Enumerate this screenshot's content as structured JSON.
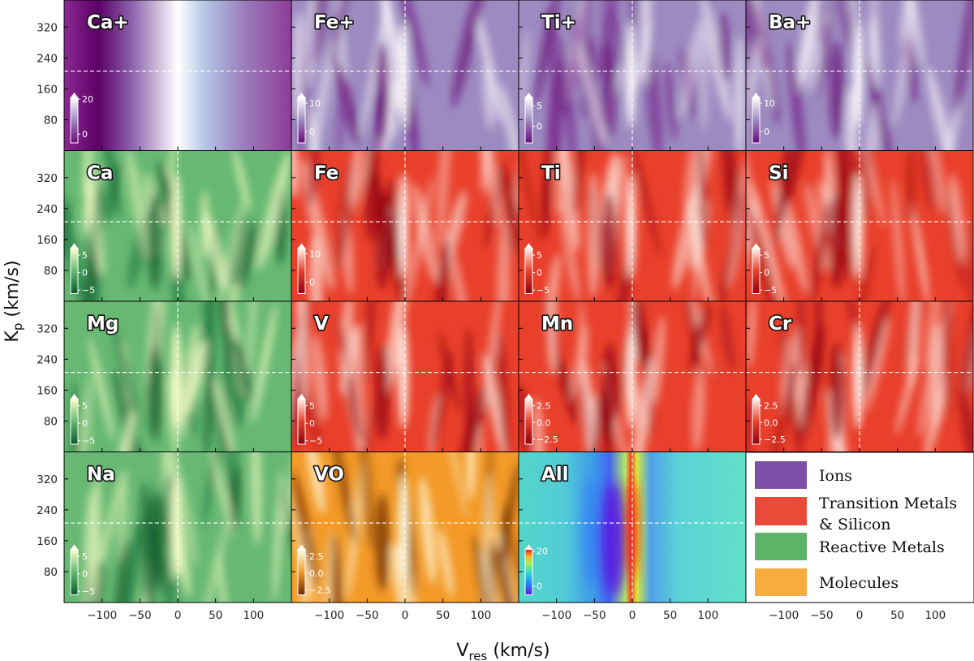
{
  "chart_data": {
    "type": "heatmap",
    "x_axis": {
      "label_main": "V",
      "label_sub": "res",
      "label_unit": " (km/s)",
      "ticks": [
        -100,
        -50,
        0,
        50,
        100
      ],
      "tick_labels": [
        "−100",
        "−50",
        "0",
        "50",
        "100"
      ],
      "range": [
        -150,
        150
      ]
    },
    "y_axis": {
      "label_main": "K",
      "label_sub": "p",
      "label_unit": " (km/s)",
      "ticks": [
        80,
        160,
        240,
        320
      ],
      "tick_labels": [
        "80",
        "160",
        "240",
        "320"
      ],
      "range": [
        0,
        390
      ]
    },
    "guide_lines": {
      "v": 0,
      "kp": 206
    },
    "panels": [
      {
        "title": "Ca+",
        "group": "ions",
        "cbar_ticks": [
          {
            "v": 20,
            "label": "20"
          },
          {
            "v": 0,
            "label": "0"
          }
        ],
        "cbar_range": [
          -5,
          21
        ]
      },
      {
        "title": "Fe+",
        "group": "ions",
        "cbar_ticks": [
          {
            "v": 10,
            "label": "10"
          },
          {
            "v": 0,
            "label": "0"
          }
        ],
        "cbar_range": [
          -4,
          12
        ]
      },
      {
        "title": "Ti+",
        "group": "ions",
        "cbar_ticks": [
          {
            "v": 5,
            "label": "5"
          },
          {
            "v": 0,
            "label": "0"
          }
        ],
        "cbar_range": [
          -4,
          7
        ]
      },
      {
        "title": "Ba+",
        "group": "ions",
        "cbar_ticks": [
          {
            "v": 10,
            "label": "10"
          },
          {
            "v": 0,
            "label": "0"
          }
        ],
        "cbar_range": [
          -4,
          12
        ]
      },
      {
        "title": "Ca",
        "group": "reactive",
        "cbar_ticks": [
          {
            "v": 5,
            "label": "5"
          },
          {
            "v": 0,
            "label": "0"
          },
          {
            "v": -5,
            "label": "−5"
          }
        ],
        "cbar_range": [
          -6,
          7
        ]
      },
      {
        "title": "Fe",
        "group": "transition",
        "cbar_ticks": [
          {
            "v": 10,
            "label": "10"
          },
          {
            "v": 0,
            "label": "0"
          }
        ],
        "cbar_range": [
          -4,
          12
        ]
      },
      {
        "title": "Ti",
        "group": "transition",
        "cbar_ticks": [
          {
            "v": 5,
            "label": "5"
          },
          {
            "v": 0,
            "label": "0"
          },
          {
            "v": -5,
            "label": "−5"
          }
        ],
        "cbar_range": [
          -6,
          7
        ]
      },
      {
        "title": "Si",
        "group": "transition",
        "cbar_ticks": [
          {
            "v": 5,
            "label": "5"
          },
          {
            "v": 0,
            "label": "0"
          },
          {
            "v": -5,
            "label": "−5"
          }
        ],
        "cbar_range": [
          -6,
          7
        ]
      },
      {
        "title": "Mg",
        "group": "reactive",
        "cbar_ticks": [
          {
            "v": 5,
            "label": "5"
          },
          {
            "v": 0,
            "label": "0"
          },
          {
            "v": -5,
            "label": "−5"
          }
        ],
        "cbar_range": [
          -6,
          7
        ]
      },
      {
        "title": "V",
        "group": "transition",
        "cbar_ticks": [
          {
            "v": 5,
            "label": "5"
          },
          {
            "v": 0,
            "label": "0"
          },
          {
            "v": -5,
            "label": "−5"
          }
        ],
        "cbar_range": [
          -6,
          7
        ]
      },
      {
        "title": "Mn",
        "group": "transition",
        "cbar_ticks": [
          {
            "v": 2.5,
            "label": "2.5"
          },
          {
            "v": 0,
            "label": "0.0"
          },
          {
            "v": -2.5,
            "label": "−2.5"
          }
        ],
        "cbar_range": [
          -3.2,
          3.5
        ]
      },
      {
        "title": "Cr",
        "group": "transition",
        "cbar_ticks": [
          {
            "v": 2.5,
            "label": "2.5"
          },
          {
            "v": 0,
            "label": "0.0"
          },
          {
            "v": -2.5,
            "label": "−2.5"
          }
        ],
        "cbar_range": [
          -3.2,
          3.5
        ]
      },
      {
        "title": "Na",
        "group": "reactive",
        "cbar_ticks": [
          {
            "v": 5,
            "label": "5"
          },
          {
            "v": 0,
            "label": "0"
          },
          {
            "v": -5,
            "label": "−5"
          }
        ],
        "cbar_range": [
          -6,
          7
        ]
      },
      {
        "title": "VO",
        "group": "molecules",
        "cbar_ticks": [
          {
            "v": 2.5,
            "label": "2.5"
          },
          {
            "v": 0,
            "label": "0.0"
          },
          {
            "v": -2.5,
            "label": "−2.5"
          }
        ],
        "cbar_range": [
          -3.2,
          3.5
        ]
      },
      {
        "title": "All",
        "group": "all",
        "cbar_ticks": [
          {
            "v": 20,
            "label": "20"
          },
          {
            "v": 0,
            "label": "0"
          }
        ],
        "cbar_range": [
          -5,
          21
        ]
      }
    ],
    "legend": [
      {
        "label_lines": [
          "Ions"
        ],
        "color": "#7e4fa6"
      },
      {
        "label_lines": [
          "Transition Metals",
          "& Silicon"
        ],
        "color": "#eb4a39"
      },
      {
        "label_lines": [
          "Reactive Metals"
        ],
        "color": "#5db468"
      },
      {
        "label_lines": [
          "Molecules"
        ],
        "color": "#f6ad3e"
      }
    ]
  },
  "colors": {
    "ions_low": "#6a0a78",
    "ions_mid": "#9c8ac0",
    "ions_high": "#ffffff",
    "reactive_low": "#0b5a2a",
    "reactive_mid": "#66b872",
    "reactive_high": "#ffffcc",
    "transition_low": "#8f0010",
    "transition_mid": "#e9402c",
    "transition_high": "#fff5ee",
    "molecules_low": "#6a2a00",
    "molecules_mid": "#f39a28",
    "molecules_high": "#ffffea",
    "guide": "#ffffff"
  }
}
